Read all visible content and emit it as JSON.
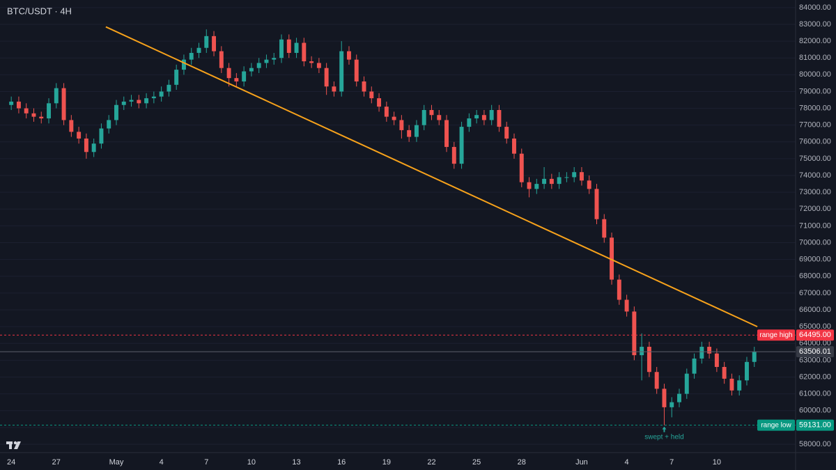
{
  "chart_data": {
    "type": "candlestick",
    "title": "BTC/USDT · 4H",
    "colors": {
      "up": "#26a69a",
      "down": "#ef5350"
    },
    "open": [
      78200,
      78400,
      78000,
      77700,
      77500,
      77400,
      78300,
      79200,
      77300,
      76600,
      76200,
      75400,
      75900,
      76800,
      77300,
      78200,
      78400,
      78500,
      78300,
      78600,
      78700,
      79000,
      79400,
      80300,
      80900,
      81300,
      81600,
      82300,
      81400,
      80400,
      79800,
      79600,
      80200,
      80400,
      80700,
      80900,
      81000,
      82100,
      81300,
      81900,
      80800,
      80700,
      80400,
      79300,
      79000,
      81400,
      80900,
      79600,
      79000,
      78600,
      78100,
      77500,
      77300,
      76700,
      76300,
      77000,
      77900,
      77600,
      77300,
      75700,
      74700,
      76900,
      77400,
      77600,
      77300,
      77900,
      76900,
      76200,
      75300,
      73600,
      73200,
      73500,
      73800,
      73500,
      73900,
      73900,
      74200,
      73700,
      73200,
      71400,
      70300,
      67800,
      66600,
      65900,
      63300,
      63800,
      62300,
      61300,
      60200,
      60500,
      61000,
      62200,
      63100,
      63800,
      63400,
      62600,
      61900,
      61200,
      61800,
      62900
    ],
    "high": [
      78700,
      78700,
      78300,
      78000,
      77800,
      78600,
      79500,
      79500,
      77600,
      76900,
      76500,
      76200,
      77100,
      77600,
      78500,
      78700,
      78800,
      78800,
      78900,
      79000,
      79300,
      79700,
      80600,
      81200,
      81600,
      81900,
      82700,
      82600,
      81700,
      80700,
      80100,
      80500,
      80700,
      81000,
      81200,
      81300,
      82400,
      82400,
      82200,
      82200,
      81100,
      81000,
      80700,
      79600,
      82000,
      81700,
      81200,
      79900,
      79300,
      78900,
      78400,
      77800,
      77600,
      77000,
      77300,
      78200,
      78200,
      77900,
      77600,
      76000,
      77200,
      77700,
      77900,
      77900,
      78200,
      78200,
      77200,
      76500,
      75600,
      73900,
      73800,
      74500,
      74100,
      74200,
      74200,
      74500,
      74500,
      74000,
      73500,
      71700,
      70600,
      68100,
      66900,
      66200,
      64600,
      64100,
      62600,
      61600,
      60800,
      61300,
      62500,
      63400,
      64100,
      64100,
      63700,
      62900,
      62200,
      62100,
      63200,
      63800
    ],
    "low": [
      77900,
      77700,
      77400,
      77200,
      77100,
      77100,
      78000,
      77000,
      76300,
      75900,
      75000,
      75100,
      75600,
      76500,
      77000,
      77900,
      78100,
      78000,
      78000,
      78300,
      78400,
      78700,
      79100,
      80000,
      80600,
      81000,
      81300,
      81100,
      80100,
      79300,
      79300,
      79300,
      79900,
      80100,
      80400,
      80600,
      80700,
      81000,
      81000,
      80500,
      80400,
      80100,
      78800,
      78700,
      78700,
      80600,
      79300,
      78700,
      78300,
      77800,
      77200,
      77000,
      76200,
      76000,
      76000,
      76700,
      77300,
      77000,
      75400,
      74400,
      74400,
      76600,
      77100,
      77000,
      77000,
      76600,
      75900,
      75000,
      73300,
      72700,
      72900,
      73200,
      73200,
      73200,
      73600,
      73600,
      73400,
      72900,
      71100,
      70000,
      67500,
      66300,
      65600,
      63000,
      61800,
      62000,
      61000,
      59131,
      59600,
      60200,
      60700,
      61900,
      62800,
      63100,
      62300,
      61600,
      60900,
      60900,
      61500,
      62600
    ],
    "close": [
      78400,
      78000,
      77700,
      77500,
      77400,
      78300,
      79200,
      77300,
      76600,
      76200,
      75400,
      75900,
      76800,
      77300,
      78200,
      78400,
      78500,
      78300,
      78600,
      78700,
      79000,
      79400,
      80300,
      80900,
      81300,
      81600,
      82300,
      81400,
      80400,
      79800,
      79600,
      80200,
      80400,
      80700,
      80900,
      81000,
      82100,
      81300,
      81900,
      80800,
      80700,
      80400,
      79300,
      79000,
      81400,
      80900,
      79600,
      79000,
      78600,
      78100,
      77500,
      77300,
      76700,
      76300,
      77000,
      77900,
      77600,
      77300,
      75700,
      74700,
      76900,
      77400,
      77600,
      77300,
      77900,
      76900,
      76200,
      75300,
      73600,
      73200,
      73500,
      73800,
      73500,
      73900,
      73900,
      74200,
      73700,
      73200,
      71400,
      70300,
      67800,
      66600,
      65900,
      63300,
      63800,
      62300,
      61300,
      60200,
      60500,
      61000,
      62200,
      63100,
      63800,
      63400,
      62600,
      61900,
      61200,
      61800,
      62900,
      63506.01
    ],
    "last_price_label": "63506.01",
    "xlim": [
      -1.5,
      104.5
    ],
    "xticks": [
      {
        "value": 0,
        "label": "24"
      },
      {
        "value": 6,
        "label": "27"
      },
      {
        "value": 14,
        "label": "May"
      },
      {
        "value": 20,
        "label": "4"
      },
      {
        "value": 26,
        "label": "7"
      },
      {
        "value": 32,
        "label": "10"
      },
      {
        "value": 38,
        "label": "13"
      },
      {
        "value": 44,
        "label": "16"
      },
      {
        "value": 50,
        "label": "19"
      },
      {
        "value": 56,
        "label": "22"
      },
      {
        "value": 62,
        "label": "25"
      },
      {
        "value": 68,
        "label": "28"
      },
      {
        "value": 76,
        "label": "Jun"
      },
      {
        "value": 82,
        "label": "4"
      },
      {
        "value": 88,
        "label": "7"
      },
      {
        "value": 94,
        "label": "10"
      }
    ],
    "ylim": [
      57500,
      84450
    ],
    "yticks": [
      {
        "value": 58000,
        "label": "58000.00"
      },
      {
        "value": 59000,
        "label": "59000.00"
      },
      {
        "value": 60000,
        "label": "60000.00"
      },
      {
        "value": 61000,
        "label": "61000.00"
      },
      {
        "value": 62000,
        "label": "62000.00"
      },
      {
        "value": 63000,
        "label": "63000.00"
      },
      {
        "value": 64000,
        "label": "64000.00"
      },
      {
        "value": 65000,
        "label": "65000.00"
      },
      {
        "value": 66000,
        "label": "66000.00"
      },
      {
        "value": 67000,
        "label": "67000.00"
      },
      {
        "value": 68000,
        "label": "68000.00"
      },
      {
        "value": 69000,
        "label": "69000.00"
      },
      {
        "value": 70000,
        "label": "70000.00"
      },
      {
        "value": 71000,
        "label": "71000.00"
      },
      {
        "value": 72000,
        "label": "72000.00"
      },
      {
        "value": 73000,
        "label": "73000.00"
      },
      {
        "value": 74000,
        "label": "74000.00"
      },
      {
        "value": 75000,
        "label": "75000.00"
      },
      {
        "value": 76000,
        "label": "76000.00"
      },
      {
        "value": 77000,
        "label": "77000.00"
      },
      {
        "value": 78000,
        "label": "78000.00"
      },
      {
        "value": 79000,
        "label": "79000.00"
      },
      {
        "value": 80000,
        "label": "80000.00"
      },
      {
        "value": 81000,
        "label": "81000.00"
      },
      {
        "value": 82000,
        "label": "82000.00"
      },
      {
        "value": 83000,
        "label": "83000.00"
      },
      {
        "value": 84000,
        "label": "84000.00"
      }
    ],
    "grid": true,
    "levels": [
      {
        "name": "range high",
        "value": 64495,
        "label": "64495.00",
        "color": "#f23645"
      },
      {
        "name": "range low",
        "value": 59131,
        "label": "59131.00",
        "color": "#089981"
      }
    ],
    "trendline": {
      "x": [
        12.6,
        99.4
      ],
      "y": [
        82850,
        65000
      ],
      "color": "#f7a21b"
    },
    "annotation": {
      "text": "swept + held",
      "x": 87,
      "y": 59131,
      "color": "#26a69a"
    }
  }
}
